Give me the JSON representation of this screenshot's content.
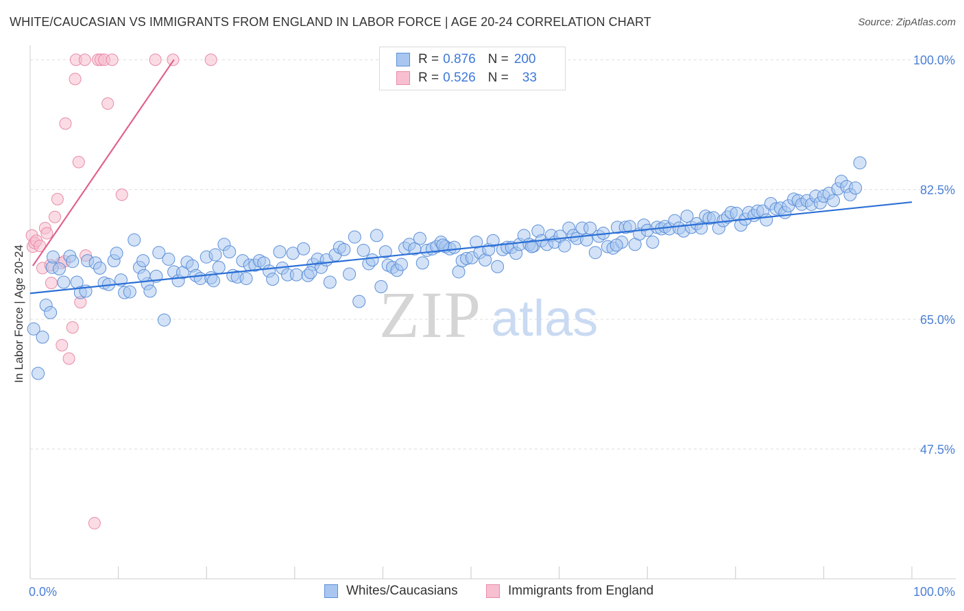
{
  "title": "WHITE/CAUCASIAN VS IMMIGRANTS FROM ENGLAND IN LABOR FORCE | AGE 20-24 CORRELATION CHART",
  "source": "Source: ZipAtlas.com",
  "watermark": {
    "zip": "ZIP",
    "atlas": "atlas"
  },
  "legend": {
    "rows": [
      {
        "r_label": "R =",
        "r_value": "0.876",
        "n_label": "N =",
        "n_value": "200"
      },
      {
        "r_label": "R =",
        "r_value": "0.526",
        "n_label": "N =",
        "n_value": "33"
      }
    ]
  },
  "bottom_legend": [
    "Whites/Caucasians",
    "Immigrants from England"
  ],
  "colors": {
    "blue_fill": "#a8c6f0",
    "blue_stroke": "#5b8fd8",
    "blue_line": "#2b6fd6",
    "pink_fill": "#f7bfd0",
    "pink_stroke": "#e88aa8",
    "pink_line": "#e0618e",
    "tick_label": "#4a7fd6",
    "grid": "#dddddd"
  },
  "chart_data": {
    "type": "scatter",
    "title": "WHITE/CAUCASIAN VS IMMIGRANTS FROM ENGLAND IN LABOR FORCE | AGE 20-24 CORRELATION CHART",
    "xlabel": "",
    "ylabel": "In Labor Force | Age 20-24",
    "xlim": [
      0,
      100
    ],
    "ylim": [
      30.0,
      101.5
    ],
    "x_tick_labels": [
      {
        "value": 0,
        "label": "0.0%"
      },
      {
        "value": 100,
        "label": "100.0%"
      }
    ],
    "y_tick_labels": [
      {
        "value": 100.0,
        "label": "100.0%"
      },
      {
        "value": 82.5,
        "label": "82.5%"
      },
      {
        "value": 65.0,
        "label": "65.0%"
      },
      {
        "value": 47.5,
        "label": "47.5%"
      }
    ],
    "grid": true,
    "legend_position": "top-center",
    "series": [
      {
        "name": "Whites/Caucasians",
        "color": "#5b8fd8",
        "trend": {
          "x": [
            0,
            100
          ],
          "y": [
            68.5,
            80.8
          ]
        },
        "points": [
          [
            0.4,
            63.7
          ],
          [
            0.9,
            57.7
          ],
          [
            1.4,
            62.6
          ],
          [
            1.8,
            66.9
          ],
          [
            2.3,
            65.9
          ],
          [
            2.5,
            72.0
          ],
          [
            2.6,
            73.4
          ],
          [
            3.3,
            71.8
          ],
          [
            3.8,
            70.0
          ],
          [
            4.5,
            73.5
          ],
          [
            4.8,
            72.8
          ],
          [
            5.3,
            70.0
          ],
          [
            5.7,
            68.6
          ],
          [
            6.3,
            68.8
          ],
          [
            6.5,
            72.9
          ],
          [
            7.4,
            72.6
          ],
          [
            7.9,
            71.9
          ],
          [
            8.4,
            69.9
          ],
          [
            8.9,
            69.7
          ],
          [
            9.5,
            72.9
          ],
          [
            9.8,
            73.9
          ],
          [
            10.3,
            70.3
          ],
          [
            10.7,
            68.6
          ],
          [
            11.3,
            68.7
          ],
          [
            11.8,
            75.7
          ],
          [
            12.4,
            72.0
          ],
          [
            12.8,
            72.9
          ],
          [
            13.3,
            69.8
          ],
          [
            13.6,
            68.8
          ],
          [
            14.3,
            70.8
          ],
          [
            14.6,
            74.0
          ],
          [
            15.2,
            64.9
          ],
          [
            15.7,
            73.1
          ],
          [
            16.3,
            71.4
          ],
          [
            16.8,
            70.2
          ],
          [
            17.3,
            71.3
          ],
          [
            17.8,
            72.7
          ],
          [
            18.4,
            72.2
          ],
          [
            18.8,
            70.9
          ],
          [
            19.3,
            70.5
          ],
          [
            20.0,
            73.4
          ],
          [
            20.5,
            70.6
          ],
          [
            21.0,
            73.7
          ],
          [
            21.4,
            72.0
          ],
          [
            22.0,
            75.1
          ],
          [
            22.6,
            74.1
          ],
          [
            23.0,
            70.9
          ],
          [
            23.5,
            70.7
          ],
          [
            24.1,
            72.9
          ],
          [
            24.5,
            70.5
          ],
          [
            24.9,
            72.3
          ],
          [
            25.5,
            72.3
          ],
          [
            26.0,
            72.9
          ],
          [
            26.5,
            72.6
          ],
          [
            27.1,
            71.5
          ],
          [
            27.5,
            70.4
          ],
          [
            28.3,
            74.1
          ],
          [
            28.6,
            71.9
          ],
          [
            29.2,
            71.0
          ],
          [
            29.8,
            73.9
          ],
          [
            30.2,
            71.0
          ],
          [
            31.0,
            74.5
          ],
          [
            31.5,
            70.9
          ],
          [
            32.1,
            72.4
          ],
          [
            32.6,
            73.1
          ],
          [
            33.0,
            72.0
          ],
          [
            33.6,
            73.0
          ],
          [
            34.0,
            70.0
          ],
          [
            34.6,
            73.7
          ],
          [
            35.1,
            74.7
          ],
          [
            35.6,
            74.4
          ],
          [
            36.2,
            71.1
          ],
          [
            36.8,
            76.1
          ],
          [
            37.3,
            67.4
          ],
          [
            37.8,
            74.3
          ],
          [
            38.4,
            72.5
          ],
          [
            38.8,
            73.0
          ],
          [
            39.3,
            76.3
          ],
          [
            39.8,
            69.4
          ],
          [
            40.3,
            74.1
          ],
          [
            40.6,
            72.3
          ],
          [
            41.1,
            72.0
          ],
          [
            41.6,
            71.6
          ],
          [
            42.1,
            72.4
          ],
          [
            42.5,
            74.6
          ],
          [
            43.0,
            75.1
          ],
          [
            43.6,
            74.5
          ],
          [
            44.2,
            75.9
          ],
          [
            44.5,
            72.6
          ],
          [
            45.0,
            74.3
          ],
          [
            45.6,
            74.5
          ],
          [
            46.1,
            74.8
          ],
          [
            46.6,
            75.4
          ],
          [
            47.1,
            74.8
          ],
          [
            47.6,
            74.5
          ],
          [
            48.1,
            74.7
          ],
          [
            48.6,
            71.4
          ],
          [
            49.0,
            72.9
          ],
          [
            49.5,
            73.2
          ],
          [
            50.1,
            73.3
          ],
          [
            50.6,
            75.4
          ],
          [
            51.0,
            74.0
          ],
          [
            51.6,
            73.0
          ],
          [
            52.0,
            74.4
          ],
          [
            52.5,
            75.6
          ],
          [
            53.0,
            72.1
          ],
          [
            53.6,
            74.4
          ],
          [
            54.1,
            74.7
          ],
          [
            54.6,
            74.7
          ],
          [
            55.1,
            73.9
          ],
          [
            55.5,
            75.1
          ],
          [
            56.0,
            76.3
          ],
          [
            56.6,
            75.1
          ],
          [
            57.1,
            74.9
          ],
          [
            57.6,
            76.9
          ],
          [
            58.0,
            75.6
          ],
          [
            58.6,
            75.1
          ],
          [
            59.1,
            76.3
          ],
          [
            59.5,
            75.4
          ],
          [
            60.1,
            76.2
          ],
          [
            60.6,
            74.9
          ],
          [
            61.1,
            77.3
          ],
          [
            61.6,
            76.3
          ],
          [
            62.0,
            75.9
          ],
          [
            62.6,
            77.3
          ],
          [
            63.1,
            75.7
          ],
          [
            63.5,
            77.3
          ],
          [
            64.1,
            74.0
          ],
          [
            64.5,
            76.2
          ],
          [
            65.0,
            76.6
          ],
          [
            65.5,
            74.8
          ],
          [
            66.1,
            74.6
          ],
          [
            66.6,
            77.4
          ],
          [
            67.1,
            75.4
          ],
          [
            67.5,
            77.4
          ],
          [
            68.0,
            77.5
          ],
          [
            68.6,
            75.1
          ],
          [
            69.1,
            76.5
          ],
          [
            69.6,
            77.7
          ],
          [
            70.0,
            77.0
          ],
          [
            70.6,
            75.4
          ],
          [
            71.1,
            77.4
          ],
          [
            71.6,
            77.2
          ],
          [
            72.0,
            77.5
          ],
          [
            72.5,
            77.2
          ],
          [
            73.1,
            78.3
          ],
          [
            73.6,
            77.3
          ],
          [
            74.1,
            76.9
          ],
          [
            74.5,
            78.9
          ],
          [
            75.0,
            77.4
          ],
          [
            75.6,
            77.9
          ],
          [
            76.1,
            77.3
          ],
          [
            76.6,
            78.9
          ],
          [
            77.0,
            78.6
          ],
          [
            77.5,
            78.7
          ],
          [
            78.1,
            77.3
          ],
          [
            78.6,
            78.3
          ],
          [
            79.1,
            78.8
          ],
          [
            79.5,
            79.4
          ],
          [
            80.1,
            79.3
          ],
          [
            80.6,
            77.7
          ],
          [
            81.1,
            78.5
          ],
          [
            81.5,
            79.4
          ],
          [
            82.1,
            79.0
          ],
          [
            82.5,
            79.6
          ],
          [
            83.1,
            79.6
          ],
          [
            83.5,
            78.4
          ],
          [
            84.0,
            80.6
          ],
          [
            84.6,
            79.9
          ],
          [
            85.1,
            80.0
          ],
          [
            85.6,
            79.4
          ],
          [
            86.0,
            80.3
          ],
          [
            86.6,
            81.2
          ],
          [
            87.1,
            81.0
          ],
          [
            87.5,
            80.5
          ],
          [
            88.1,
            81.0
          ],
          [
            88.6,
            80.5
          ],
          [
            89.1,
            81.6
          ],
          [
            89.6,
            80.7
          ],
          [
            90.0,
            81.6
          ],
          [
            90.6,
            82.0
          ],
          [
            91.1,
            81.0
          ],
          [
            91.6,
            82.6
          ],
          [
            92.0,
            83.6
          ],
          [
            92.6,
            82.9
          ],
          [
            93.0,
            81.8
          ],
          [
            93.6,
            82.7
          ],
          [
            94.1,
            86.1
          ],
          [
            46.8,
            75.0
          ],
          [
            31.8,
            71.3
          ],
          [
            20.8,
            70.2
          ],
          [
            56.9,
            74.8
          ],
          [
            66.5,
            75.0
          ],
          [
            12.9,
            70.9
          ]
        ]
      },
      {
        "name": "Immigrants from England",
        "color": "#e88aa8",
        "trend": {
          "x": [
            0.3,
            16.3
          ],
          "y": [
            72.2,
            100.0
          ]
        },
        "points": [
          [
            0.2,
            76.3
          ],
          [
            0.3,
            74.8
          ],
          [
            0.5,
            75.3
          ],
          [
            0.7,
            75.6
          ],
          [
            1.1,
            74.9
          ],
          [
            1.4,
            71.9
          ],
          [
            1.7,
            77.3
          ],
          [
            1.9,
            76.6
          ],
          [
            2.3,
            72.3
          ],
          [
            2.4,
            69.9
          ],
          [
            2.8,
            78.8
          ],
          [
            3.1,
            81.2
          ],
          [
            3.5,
            72.6
          ],
          [
            3.6,
            61.5
          ],
          [
            3.9,
            72.8
          ],
          [
            4.0,
            91.4
          ],
          [
            4.4,
            59.7
          ],
          [
            4.8,
            63.9
          ],
          [
            5.1,
            97.4
          ],
          [
            5.2,
            100.0
          ],
          [
            5.5,
            86.2
          ],
          [
            5.7,
            67.3
          ],
          [
            6.2,
            100.0
          ],
          [
            6.3,
            73.6
          ],
          [
            7.3,
            37.5
          ],
          [
            7.7,
            100.0
          ],
          [
            8.0,
            100.0
          ],
          [
            8.4,
            100.0
          ],
          [
            8.8,
            94.1
          ],
          [
            9.3,
            100.0
          ],
          [
            10.4,
            81.8
          ],
          [
            14.2,
            100.0
          ],
          [
            16.2,
            100.0
          ],
          [
            20.5,
            100.0
          ]
        ]
      }
    ]
  }
}
